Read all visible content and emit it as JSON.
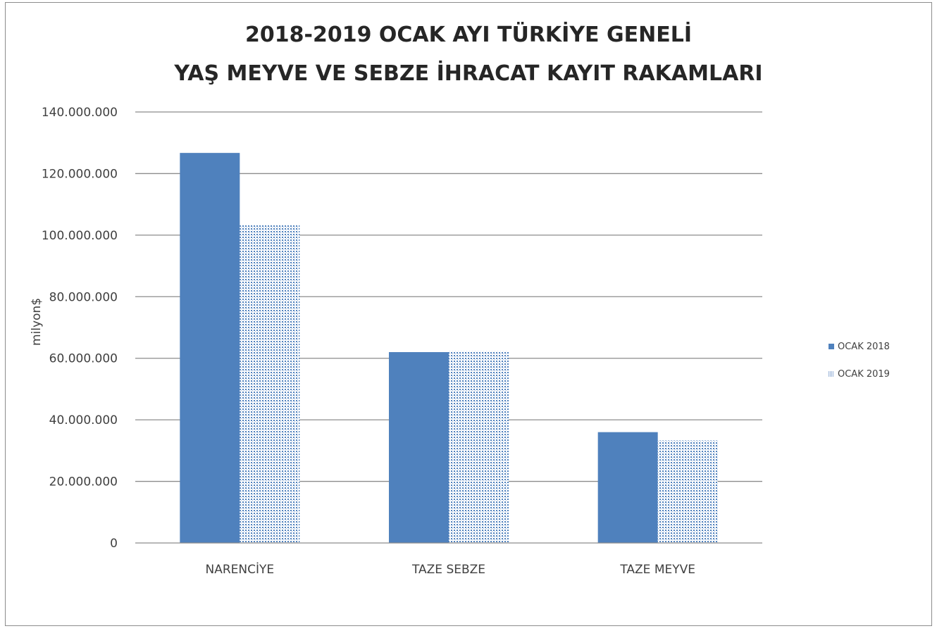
{
  "chart_data": {
    "type": "bar",
    "title": "2018-2019 OCAK AYI TÜRKİYE GENELİ YAŞ MEYVE VE SEBZE İHRACAT KAYIT RAKAMLARI",
    "title_lines": [
      "2018-2019 OCAK AYI TÜRKİYE GENELİ",
      "YAŞ MEYVE VE SEBZE İHRACAT KAYIT RAKAMLARI"
    ],
    "ylabel": "milyon$",
    "xlabel": "",
    "categories": [
      "NARENCİYE",
      "TAZE SEBZE",
      "TAZE MEYVE"
    ],
    "series": [
      {
        "name": "OCAK 2018",
        "values": [
          126700000,
          62000000,
          36000000
        ],
        "color": "#4f81bd",
        "pattern": "solid"
      },
      {
        "name": "OCAK 2019",
        "values": [
          103200000,
          62300000,
          33300000
        ],
        "color": "#4f81bd",
        "pattern": "dotted"
      }
    ],
    "ylim": [
      0,
      140000000
    ],
    "yticks": [
      0,
      20000000,
      40000000,
      60000000,
      80000000,
      100000000,
      120000000,
      140000000
    ],
    "ytick_labels": [
      "0",
      "20.000.000",
      "40.000.000",
      "60.000.000",
      "80.000.000",
      "100.000.000",
      "120.000.000",
      "140.000.000"
    ],
    "grid": true,
    "legend_position": "right"
  }
}
